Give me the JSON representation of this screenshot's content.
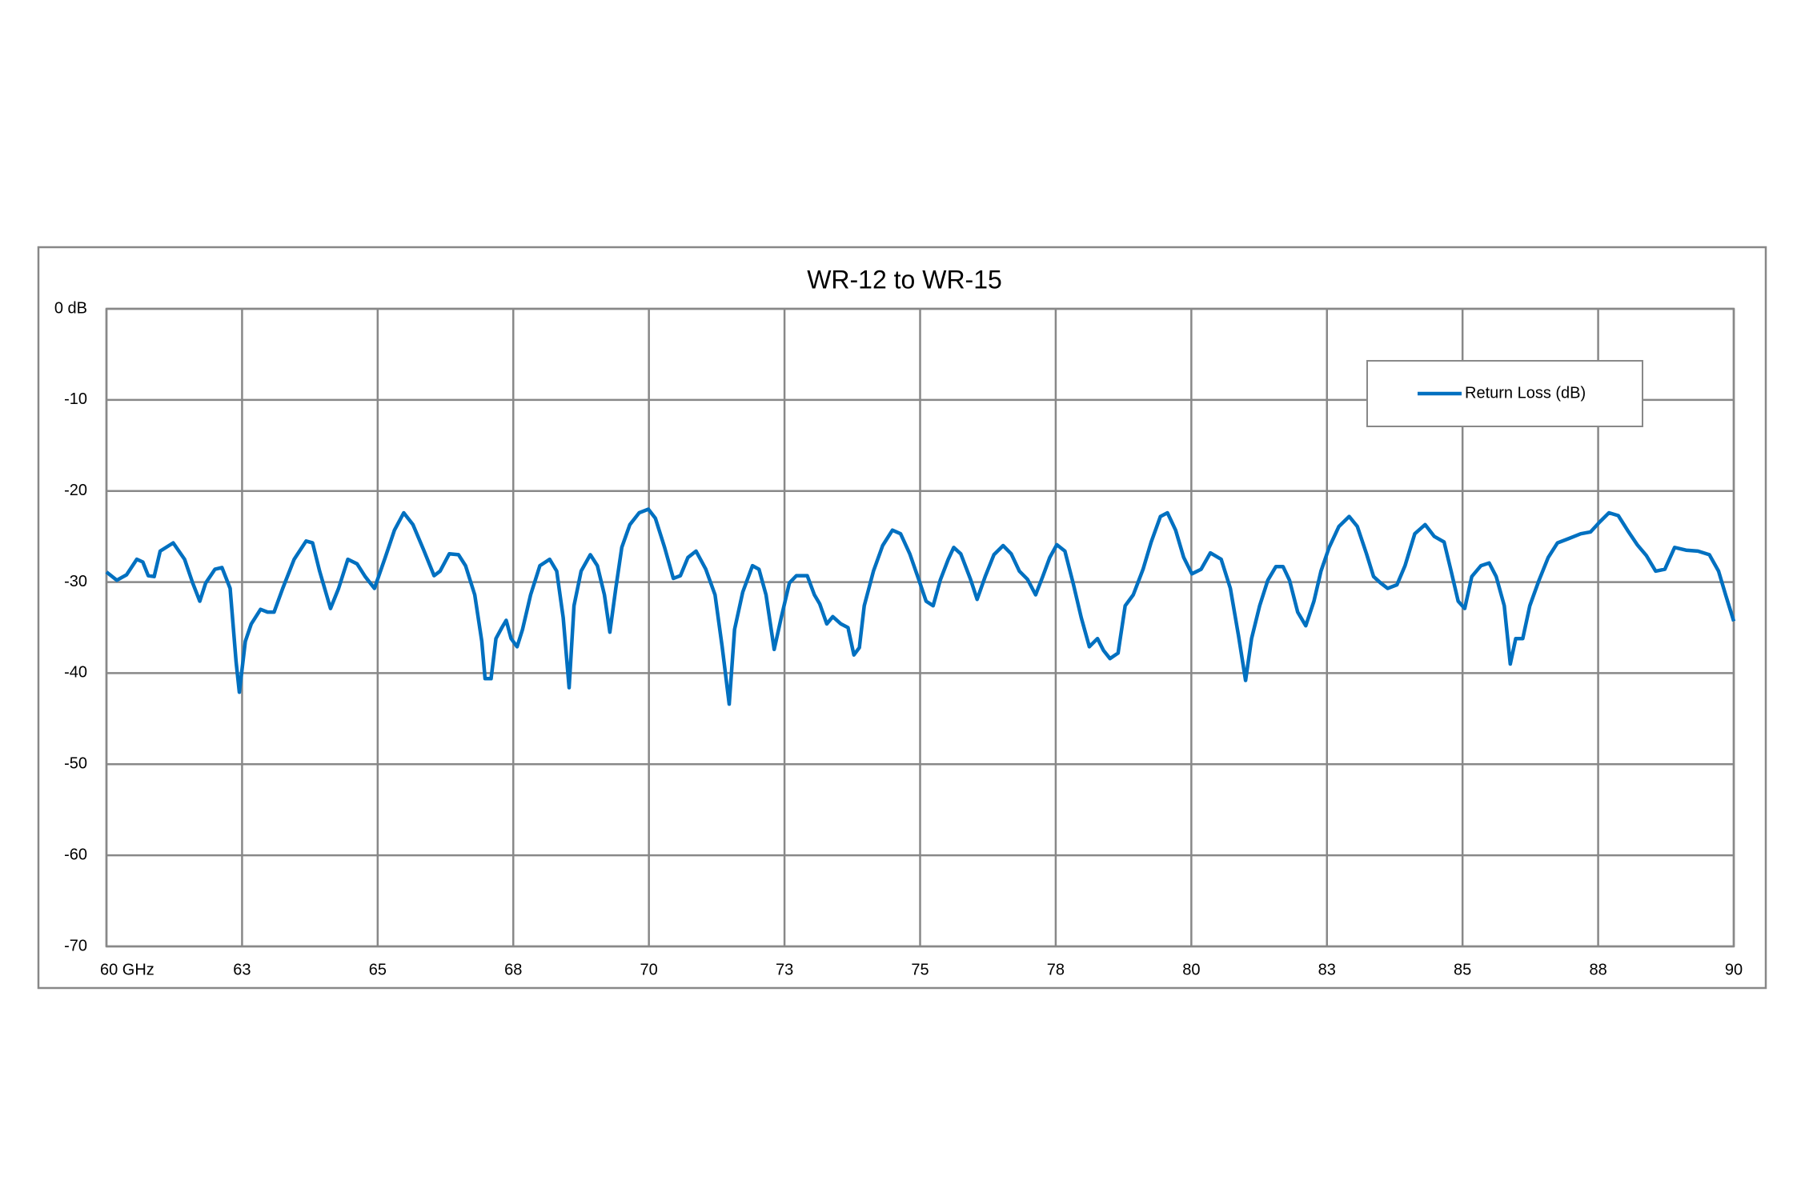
{
  "chart_data": {
    "type": "line",
    "title": "WR-12 to WR-15",
    "x": [
      60,
      60.19,
      60.37,
      60.56,
      60.67,
      60.77,
      60.88,
      60.99,
      61.23,
      61.44,
      61.59,
      61.72,
      61.83,
      62.0,
      62.13,
      62.28,
      62.39,
      62.45,
      62.56,
      62.67,
      62.84,
      62.97,
      63.09,
      63.25,
      63.46,
      63.68,
      63.8,
      63.93,
      64.13,
      64.28,
      64.45,
      64.62,
      64.77,
      64.94,
      65.14,
      65.31,
      65.48,
      65.65,
      65.85,
      66.04,
      66.15,
      66.32,
      66.49,
      66.62,
      66.79,
      66.92,
      66.98,
      67.09,
      67.18,
      67.29,
      67.37,
      67.46,
      67.57,
      67.67,
      67.82,
      67.99,
      68.17,
      68.3,
      68.42,
      68.53,
      68.62,
      68.75,
      68.92,
      69.05,
      69.18,
      69.28,
      69.39,
      69.5,
      69.65,
      69.82,
      69.99,
      70.12,
      70.29,
      70.45,
      70.58,
      70.72,
      70.87,
      71.05,
      71.22,
      71.35,
      71.48,
      71.58,
      71.73,
      71.91,
      72.03,
      72.16,
      72.31,
      72.44,
      72.59,
      72.72,
      72.92,
      73.05,
      73.15,
      73.28,
      73.39,
      73.54,
      73.67,
      73.78,
      73.88,
      73.97,
      74.14,
      74.31,
      74.49,
      74.64,
      74.81,
      74.98,
      75.11,
      75.24,
      75.37,
      75.52,
      75.62,
      75.75,
      75.93,
      76.05,
      76.2,
      76.36,
      76.53,
      76.68,
      76.83,
      76.98,
      77.13,
      77.26,
      77.39,
      77.52,
      77.67,
      77.82,
      77.97,
      78.12,
      78.27,
      78.38,
      78.5,
      78.65,
      78.78,
      78.93,
      79.11,
      79.26,
      79.43,
      79.56,
      79.71,
      79.86,
      80.01,
      80.18,
      80.35,
      80.55,
      80.72,
      80.87,
      81.0,
      81.11,
      81.26,
      81.41,
      81.56,
      81.69,
      81.81,
      81.96,
      82.11,
      82.26,
      82.39,
      82.54,
      82.72,
      82.91,
      83.06,
      83.23,
      83.36,
      83.49,
      83.62,
      83.79,
      83.94,
      84.12,
      84.31,
      84.48,
      84.66,
      84.79,
      84.92,
      85.04,
      85.17,
      85.34,
      85.49,
      85.62,
      85.77,
      85.88,
      85.98,
      86.11,
      86.24,
      86.41,
      86.58,
      86.75,
      86.97,
      87.18,
      87.36,
      87.53,
      87.7,
      87.87,
      88.04,
      88.22,
      88.39,
      88.56,
      88.73,
      88.91,
      89.12,
      89.34,
      89.55,
      89.72,
      89.85,
      90.0
    ],
    "series": [
      {
        "name": "Return Loss (dB)",
        "color": "#0070c0",
        "values": [
          -28.9,
          -29.8,
          -29.2,
          -27.5,
          -27.8,
          -29.3,
          -29.4,
          -26.6,
          -25.7,
          -27.5,
          -30.1,
          -32.1,
          -30.1,
          -28.6,
          -28.4,
          -30.7,
          -38.8,
          -42.1,
          -36.5,
          -34.6,
          -33.0,
          -33.3,
          -33.3,
          -30.7,
          -27.5,
          -25.5,
          -25.7,
          -28.8,
          -32.9,
          -30.7,
          -27.5,
          -28.0,
          -29.4,
          -30.7,
          -27.3,
          -24.3,
          -22.4,
          -23.7,
          -26.5,
          -29.3,
          -28.8,
          -26.9,
          -27.0,
          -28.2,
          -31.4,
          -36.5,
          -40.6,
          -40.6,
          -36.2,
          -35.0,
          -34.2,
          -36.2,
          -37.1,
          -35.2,
          -31.4,
          -28.2,
          -27.5,
          -28.8,
          -33.9,
          -41.6,
          -32.6,
          -28.8,
          -27.0,
          -28.2,
          -31.4,
          -35.5,
          -30.7,
          -26.2,
          -23.7,
          -22.4,
          -22.0,
          -23.0,
          -26.2,
          -29.6,
          -29.3,
          -27.3,
          -26.6,
          -28.6,
          -31.4,
          -37.1,
          -43.4,
          -35.2,
          -31.1,
          -28.2,
          -28.6,
          -31.4,
          -37.4,
          -33.9,
          -30.1,
          -29.3,
          -29.3,
          -31.4,
          -32.4,
          -34.6,
          -33.8,
          -34.6,
          -35.0,
          -38.0,
          -37.2,
          -32.6,
          -28.8,
          -26.0,
          -24.3,
          -24.7,
          -26.9,
          -29.8,
          -32.1,
          -32.6,
          -29.8,
          -27.5,
          -26.2,
          -26.9,
          -29.7,
          -31.9,
          -29.4,
          -27.0,
          -26.0,
          -26.9,
          -28.8,
          -29.7,
          -31.4,
          -29.4,
          -27.3,
          -25.9,
          -26.6,
          -30.1,
          -33.9,
          -37.1,
          -36.2,
          -37.5,
          -38.4,
          -37.8,
          -32.6,
          -31.4,
          -28.6,
          -25.6,
          -22.8,
          -22.4,
          -24.3,
          -27.3,
          -29.1,
          -28.6,
          -26.8,
          -27.5,
          -30.7,
          -35.9,
          -40.8,
          -36.2,
          -32.6,
          -29.8,
          -28.3,
          -28.3,
          -29.8,
          -33.3,
          -34.8,
          -32.1,
          -28.8,
          -26.2,
          -23.9,
          -22.8,
          -23.9,
          -26.9,
          -29.4,
          -30.1,
          -30.7,
          -30.3,
          -28.2,
          -24.7,
          -23.7,
          -25.0,
          -25.6,
          -28.8,
          -32.1,
          -32.9,
          -29.4,
          -28.2,
          -27.9,
          -29.4,
          -32.6,
          -39.0,
          -36.2,
          -36.2,
          -32.6,
          -29.8,
          -27.3,
          -25.7,
          -25.2,
          -24.7,
          -24.5,
          -23.4,
          -22.4,
          -22.7,
          -24.3,
          -25.9,
          -27.1,
          -28.8,
          -28.6,
          -26.2,
          -26.5,
          -26.6,
          -27.0,
          -28.8,
          -31.4,
          -34.3
        ]
      }
    ],
    "xlim": [
      60,
      90
    ],
    "xticks": [
      {
        "value": 60,
        "label": "60 GHz"
      },
      {
        "value": 62.5,
        "label": "63"
      },
      65,
      {
        "value": 67.5,
        "label": "68"
      },
      70,
      {
        "value": 72.5,
        "label": "73"
      },
      75,
      {
        "value": 77.5,
        "label": "78"
      },
      80,
      {
        "value": 82.5,
        "label": "83"
      },
      85,
      {
        "value": 87.5,
        "label": "88"
      },
      90
    ],
    "ylim": [
      -70,
      0
    ],
    "yticks": [
      {
        "value": 0,
        "label": "0 dB"
      },
      -10,
      -20,
      -30,
      -40,
      -50,
      -60,
      -70
    ],
    "grid": true,
    "legend": "upper right"
  }
}
